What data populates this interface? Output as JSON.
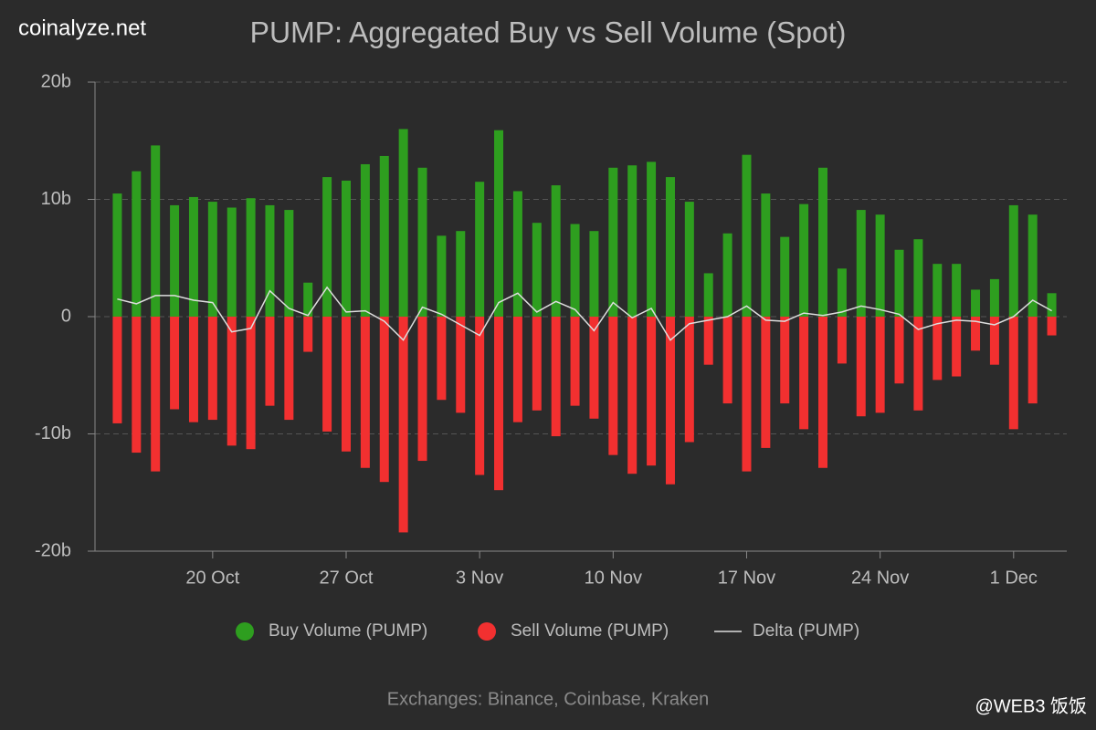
{
  "chart_data": {
    "type": "bar",
    "brand": "coinalyze.net",
    "title": "PUMP: Aggregated Buy vs Sell Volume (Spot)",
    "footnote": "Exchanges: Binance, Coinbase, Kraken",
    "watermark": "@WEB3 饭饭",
    "categories": [
      null,
      null,
      null,
      null,
      null,
      "20 Oct",
      null,
      null,
      null,
      null,
      null,
      null,
      "27 Oct",
      null,
      null,
      null,
      null,
      null,
      null,
      "3 Nov",
      null,
      null,
      null,
      null,
      null,
      null,
      "10 Nov",
      null,
      null,
      null,
      null,
      null,
      null,
      "17 Nov",
      null,
      null,
      null,
      null,
      null,
      null,
      "24 Nov",
      null,
      null,
      null,
      null,
      null,
      null,
      "1 Dec",
      null,
      null
    ],
    "ylim": [
      -20,
      20
    ],
    "yticks": [
      {
        "value": -20,
        "label": "-20b"
      },
      {
        "value": -10,
        "label": "-10b"
      },
      {
        "value": 0,
        "label": "0"
      },
      {
        "value": 10,
        "label": "10b"
      },
      {
        "value": 20,
        "label": "20b"
      }
    ],
    "grid": true,
    "legend": "bottom",
    "series": [
      {
        "name": "Buy Volume (PUMP)",
        "type": "bar",
        "color": "#2e9e1f",
        "values": [
          10.5,
          12.4,
          14.6,
          9.5,
          10.2,
          9.8,
          9.3,
          10.1,
          9.5,
          9.1,
          2.9,
          11.9,
          11.6,
          13.0,
          13.7,
          16.0,
          12.7,
          6.9,
          7.3,
          11.5,
          15.9,
          10.7,
          8.0,
          11.2,
          7.9,
          7.3,
          12.7,
          12.9,
          13.2,
          11.9,
          9.8,
          3.7,
          7.1,
          13.8,
          10.5,
          6.8,
          9.6,
          12.7,
          4.1,
          9.1,
          8.7,
          5.7,
          6.6,
          4.5,
          4.5,
          2.3,
          3.2,
          9.5,
          8.7,
          2.0
        ]
      },
      {
        "name": "Sell Volume (PUMP)",
        "type": "bar",
        "color": "#f23030",
        "values": [
          -9.1,
          -11.6,
          -13.2,
          -7.9,
          -9.0,
          -8.8,
          -11.0,
          -11.3,
          -7.6,
          -8.8,
          -3.0,
          -9.8,
          -11.5,
          -12.9,
          -14.1,
          -18.4,
          -12.3,
          -7.1,
          -8.2,
          -13.5,
          -14.8,
          -9.0,
          -8.0,
          -10.2,
          -7.6,
          -8.7,
          -11.8,
          -13.4,
          -12.7,
          -14.3,
          -10.7,
          -4.1,
          -7.4,
          -13.2,
          -11.2,
          -7.4,
          -9.6,
          -12.9,
          -4.0,
          -8.5,
          -8.2,
          -5.7,
          -8.0,
          -5.4,
          -5.1,
          -2.9,
          -4.1,
          -9.6,
          -7.4,
          -1.6
        ]
      },
      {
        "name": "Delta (PUMP)",
        "type": "line",
        "color": "#dddddd",
        "values": [
          1.5,
          1.1,
          1.8,
          1.8,
          1.4,
          1.2,
          -1.3,
          -1.0,
          2.2,
          0.7,
          0.1,
          2.5,
          0.4,
          0.5,
          -0.4,
          -2.0,
          0.8,
          0.2,
          -0.7,
          -1.6,
          1.2,
          2.0,
          0.4,
          1.3,
          0.6,
          -1.2,
          1.2,
          -0.1,
          0.7,
          -2.0,
          -0.6,
          -0.3,
          0,
          0.9,
          -0.3,
          -0.4,
          0.3,
          0.1,
          0.4,
          0.9,
          0.6,
          0.2,
          -1.1,
          -0.6,
          -0.3,
          -0.4,
          -0.7,
          0,
          1.4,
          0.5
        ]
      }
    ]
  }
}
